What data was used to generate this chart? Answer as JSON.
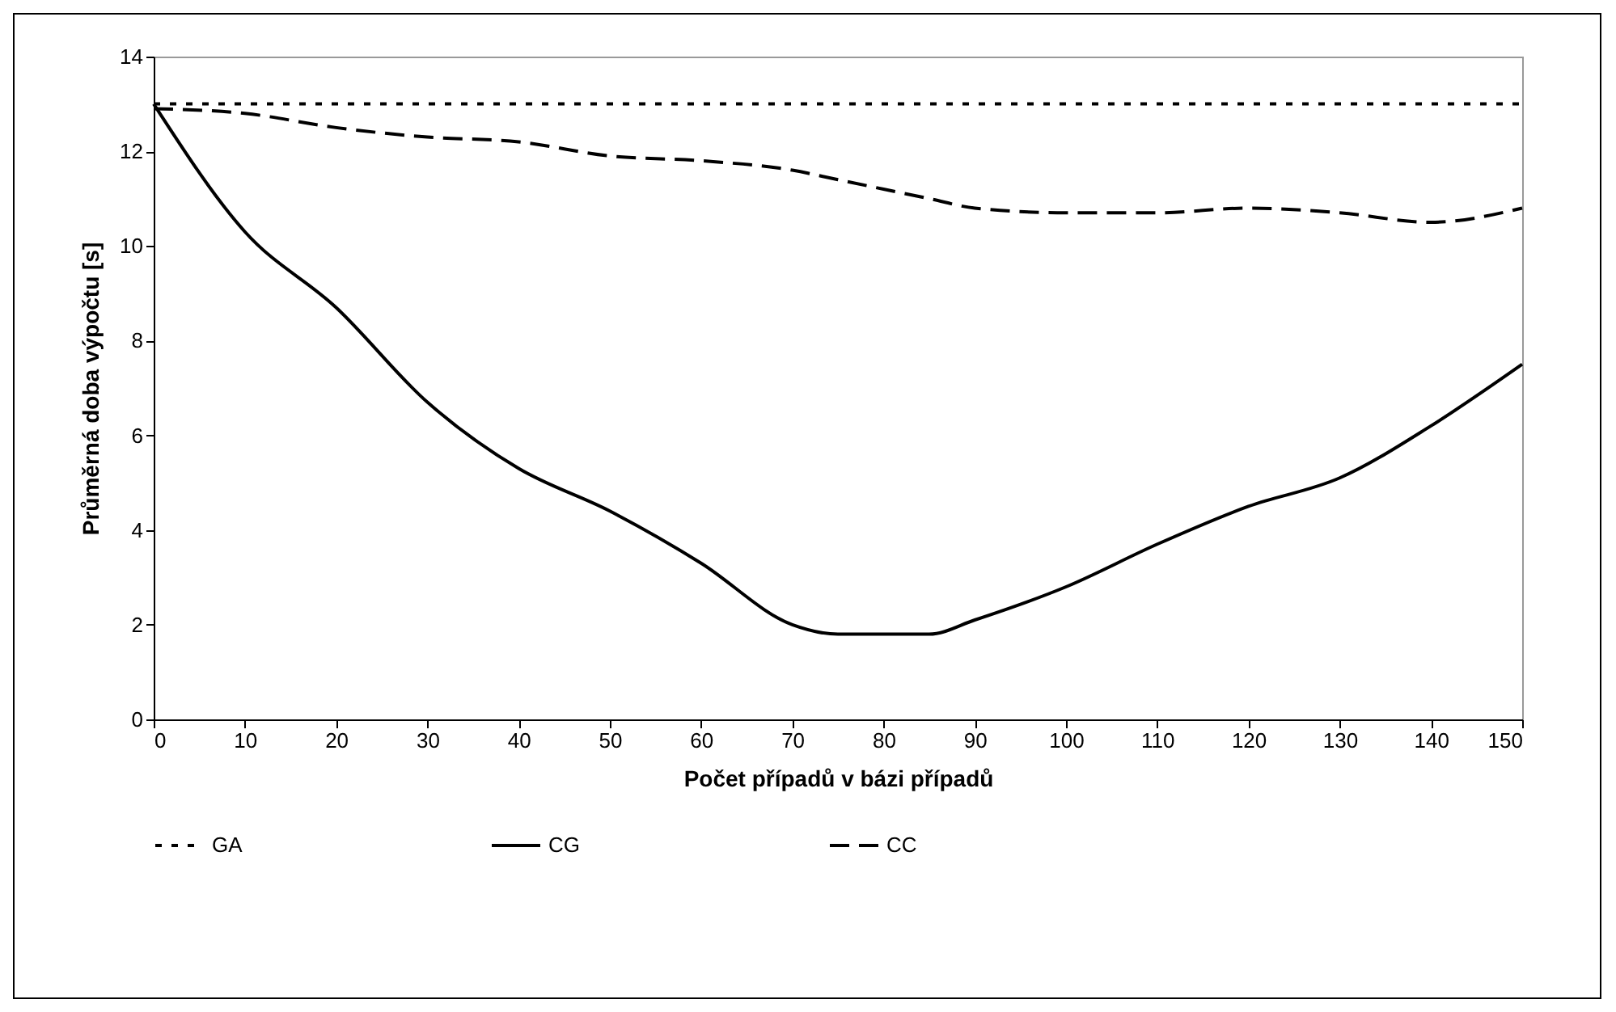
{
  "chart_data": {
    "type": "line",
    "xlabel": "Počet případů v bázi případů",
    "ylabel": "Průměrná doba výpočtu [s]",
    "x": [
      0,
      10,
      20,
      30,
      40,
      50,
      60,
      70,
      75,
      80,
      85,
      90,
      100,
      110,
      120,
      130,
      140,
      150
    ],
    "series": [
      {
        "name": "GA",
        "color": "#000000",
        "line_style": "dotted",
        "values": [
          13,
          13,
          13,
          13,
          13,
          13,
          13,
          13,
          13,
          13,
          13,
          13,
          13,
          13,
          13,
          13,
          13,
          13
        ]
      },
      {
        "name": "CG",
        "color": "#000000",
        "line_style": "solid",
        "values": [
          13,
          10.3,
          8.7,
          6.7,
          5.3,
          4.4,
          3.3,
          2.0,
          1.8,
          1.8,
          1.8,
          2.1,
          2.8,
          3.7,
          4.5,
          5.1,
          6.2,
          7.5
        ]
      },
      {
        "name": "CC",
        "color": "#000000",
        "line_style": "dashed",
        "values": [
          12.9,
          12.8,
          12.5,
          12.3,
          12.2,
          11.9,
          11.8,
          11.6,
          11.4,
          11.2,
          11.0,
          10.8,
          10.7,
          10.7,
          10.8,
          10.7,
          10.5,
          10.8
        ]
      }
    ],
    "xlim": [
      0,
      150
    ],
    "xticks": [
      0,
      10,
      20,
      30,
      40,
      50,
      60,
      70,
      80,
      90,
      100,
      110,
      120,
      130,
      140,
      150
    ],
    "ylim": [
      0,
      14
    ],
    "yticks": [
      0,
      2,
      4,
      6,
      8,
      10,
      12,
      14
    ],
    "grid": false,
    "legend": "bottom",
    "marker": "none"
  }
}
